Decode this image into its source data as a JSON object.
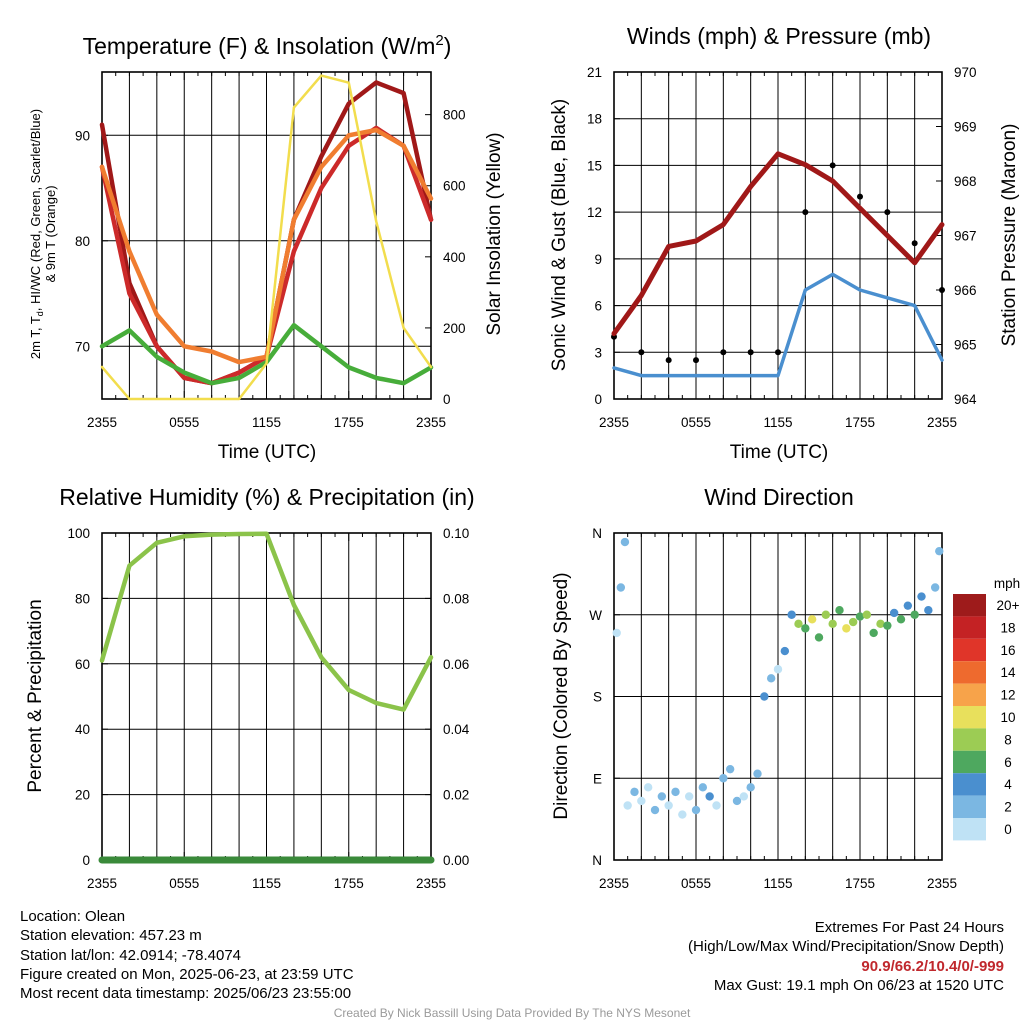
{
  "panels": {
    "temp": {
      "title": "Temperature (F) & Insolation (W/m",
      "title_sup": "2",
      "title_end": ")",
      "ylabel_line1": "2m T, T",
      "ylabel_sub": "d",
      "ylabel_line1_end": ", HI/WC (Red, Green, Scarlet/Blue)",
      "ylabel_line2": "& 9m T (Orange)",
      "y2label": "Solar Insolation (Yellow)",
      "xlabel": "Time (UTC)"
    },
    "wind": {
      "title": "Winds (mph) & Pressure (mb)",
      "ylabel": "Sonic Wind & Gust (Blue, Black)",
      "y2label": "Station Pressure (Maroon)",
      "xlabel": "Time (UTC)"
    },
    "rh": {
      "title": "Relative Humidity (%) & Precipitation (in)",
      "ylabel": "Percent & Precipitation"
    },
    "dir": {
      "title": "Wind Direction",
      "ylabel": "Direction (Colored By Speed)",
      "colorbar_title": "mph"
    }
  },
  "chart_data": [
    {
      "id": "temp",
      "type": "line",
      "x": [
        0,
        2,
        4,
        6,
        8,
        10,
        12,
        14,
        16,
        18,
        20,
        22,
        24
      ],
      "xticks": [
        0,
        6,
        12,
        18,
        24
      ],
      "xticklabels": [
        "2355",
        "0555",
        "1155",
        "1755",
        "2355"
      ],
      "xlim": [
        0,
        24
      ],
      "ylim": [
        65,
        96
      ],
      "yticks": [
        70,
        80,
        90
      ],
      "y2lim": [
        0,
        920
      ],
      "y2ticks": [
        0,
        200,
        400,
        600,
        800
      ],
      "series": [
        {
          "color": "#a01818",
          "axis": "left",
          "values": [
            91,
            76,
            70,
            67,
            66.5,
            67.5,
            69,
            82,
            88,
            93,
            95,
            94,
            82
          ]
        },
        {
          "color": "#cc2a2a",
          "axis": "left",
          "values": [
            87,
            75,
            70,
            67,
            66.5,
            67.5,
            69,
            79,
            85,
            89,
            90.7,
            89,
            82
          ]
        },
        {
          "color": "#f07d30",
          "axis": "left",
          "values": [
            87,
            79,
            73,
            70,
            69.5,
            68.5,
            69,
            82,
            87,
            90,
            90.5,
            89,
            84
          ]
        },
        {
          "color": "#47ad3a",
          "axis": "left",
          "values": [
            70,
            71.5,
            69,
            67.5,
            66.5,
            67,
            68.5,
            72,
            70,
            68,
            67,
            66.5,
            68
          ]
        },
        {
          "color": "#f2dd4d",
          "axis": "right",
          "values": [
            90,
            0,
            0,
            0,
            0,
            0,
            100,
            820,
            910,
            890,
            500,
            200,
            90
          ]
        }
      ]
    },
    {
      "id": "wind",
      "type": "line",
      "x": [
        0,
        2,
        4,
        6,
        8,
        10,
        12,
        14,
        16,
        18,
        20,
        22,
        24
      ],
      "xticks": [
        0,
        6,
        12,
        18,
        24
      ],
      "xticklabels": [
        "2355",
        "0555",
        "1155",
        "1755",
        "2355"
      ],
      "xlim": [
        0,
        24
      ],
      "ylim": [
        0,
        21
      ],
      "yticks": [
        0,
        3,
        6,
        9,
        12,
        15,
        18,
        21
      ],
      "y2lim": [
        964,
        970
      ],
      "y2ticks": [
        964,
        965,
        966,
        967,
        968,
        969,
        970
      ],
      "series": [
        {
          "color": "#4a8fcf",
          "axis": "left",
          "values": [
            2,
            1.5,
            1.5,
            1.5,
            1.5,
            1.5,
            1.5,
            7,
            8,
            7,
            6.5,
            6,
            2.5
          ]
        },
        {
          "color": "#000000",
          "axis": "left",
          "style": "points",
          "values": [
            4,
            3,
            2.5,
            2.5,
            3,
            3,
            3,
            12,
            15,
            13,
            12,
            10,
            7
          ]
        },
        {
          "color": "#a01818",
          "axis": "right",
          "values": [
            965.2,
            965.9,
            966.8,
            966.9,
            967.2,
            967.9,
            968.5,
            968.3,
            968,
            967.5,
            967,
            966.5,
            967.2
          ]
        }
      ]
    },
    {
      "id": "rh",
      "type": "line",
      "x": [
        0,
        2,
        4,
        6,
        8,
        10,
        12,
        14,
        16,
        18,
        20,
        22,
        24
      ],
      "xticks": [
        0,
        6,
        12,
        18,
        24
      ],
      "xticklabels": [
        "2355",
        "0555",
        "1155",
        "1755",
        "2355"
      ],
      "xlim": [
        0,
        24
      ],
      "ylim": [
        0,
        100
      ],
      "yticks": [
        0,
        20,
        40,
        60,
        80,
        100
      ],
      "y2lim": [
        0,
        0.1
      ],
      "y2ticks": [
        "0.00",
        "0.02",
        "0.04",
        "0.06",
        "0.08",
        "0.10"
      ],
      "series": [
        {
          "color": "#8bc34a",
          "axis": "left",
          "values": [
            61,
            90,
            97,
            99,
            99.5,
            99.7,
            99.8,
            78,
            62,
            52,
            48,
            46,
            62
          ]
        },
        {
          "color": "#3a8a3a",
          "axis": "right",
          "values": [
            0,
            0,
            0,
            0,
            0,
            0,
            0,
            0,
            0,
            0,
            0,
            0,
            0
          ]
        }
      ]
    },
    {
      "id": "dir",
      "type": "scatter",
      "xticks": [
        0,
        6,
        12,
        18,
        24
      ],
      "xticklabels": [
        "2355",
        "0555",
        "1155",
        "1755",
        "2355"
      ],
      "xlim": [
        0,
        24
      ],
      "ylim": [
        0,
        360
      ],
      "yticks": [
        0,
        90,
        180,
        270,
        360
      ],
      "yticklabels": [
        "N",
        "E",
        "S",
        "W",
        "N"
      ],
      "x": [
        0.2,
        0.5,
        0.8,
        1.0,
        1.5,
        2.0,
        2.5,
        3.0,
        3.5,
        4.0,
        4.5,
        5.0,
        5.5,
        6.0,
        6.5,
        7.0,
        7.5,
        8.0,
        8.5,
        9.0,
        9.5,
        10.0,
        10.5,
        11.0,
        11.5,
        12.0,
        12.5,
        13.0,
        13.5,
        14.0,
        14.5,
        15.0,
        15.5,
        16.0,
        16.5,
        17.0,
        17.5,
        18.0,
        18.5,
        19.0,
        19.5,
        20.0,
        20.5,
        21.0,
        21.5,
        22.0,
        22.5,
        23.0,
        23.5,
        23.8
      ],
      "values": [
        250,
        300,
        350,
        60,
        75,
        65,
        80,
        55,
        70,
        60,
        75,
        50,
        70,
        55,
        80,
        70,
        60,
        90,
        100,
        65,
        70,
        80,
        95,
        180,
        200,
        210,
        230,
        270,
        260,
        255,
        265,
        245,
        270,
        260,
        275,
        255,
        262,
        268,
        270,
        250,
        260,
        258,
        272,
        265,
        280,
        270,
        290,
        275,
        300,
        340
      ],
      "speeds": [
        1,
        2,
        3,
        1,
        2,
        1,
        0,
        3,
        2,
        1,
        2,
        0,
        1,
        3,
        2,
        4,
        1,
        2,
        3,
        2,
        1,
        2,
        3,
        4,
        2,
        1,
        4,
        5,
        8,
        6,
        10,
        7,
        9,
        8,
        6,
        10,
        8,
        7,
        9,
        6,
        8,
        7,
        5,
        6,
        4,
        6,
        5,
        4,
        3,
        2
      ]
    }
  ],
  "colorbar": {
    "labels": [
      "20+",
      "18",
      "16",
      "14",
      "12",
      "10",
      "8",
      "6",
      "4",
      "2",
      "0"
    ],
    "colors": [
      "#9e1b1b",
      "#c42224",
      "#e03529",
      "#ee6a2e",
      "#f7a34a",
      "#e8e05c",
      "#9ccc54",
      "#4ea85f",
      "#4a8fcf",
      "#7bb7e2",
      "#bfe2f5"
    ]
  },
  "info_left": [
    "Location: Olean",
    "Station elevation: 457.23 m",
    "Station lat/lon: 42.0914; -78.4074",
    "Figure created on Mon, 2025-06-23, at 23:59 UTC",
    "Most recent data timestamp: 2025/06/23 23:55:00"
  ],
  "info_right": {
    "line1": "Extremes For Past 24 Hours",
    "line2": "(High/Low/Max Wind/Precipitation/Snow Depth)",
    "values": "90.9/66.2/10.4/0/-999",
    "gust": "Max Gust: 19.1 mph On 06/23 at 1520 UTC"
  },
  "credit": "Created By Nick Bassill Using Data Provided By The NYS Mesonet",
  "colors": {
    "grid": "#000000",
    "maroon": "#a01818"
  }
}
